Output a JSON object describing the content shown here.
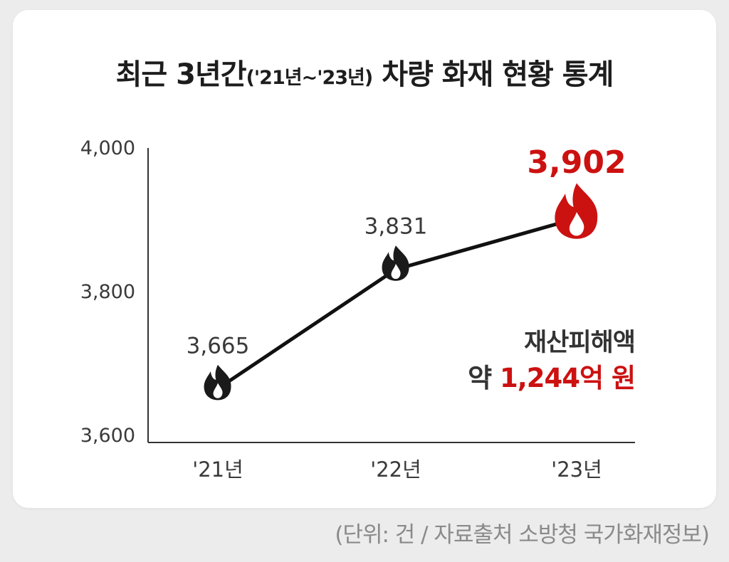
{
  "chart_data": {
    "type": "line",
    "title": "최근 3년간",
    "title_period": "('21년~'23년)",
    "title_tail": "차량 화재 현황 통계",
    "categories": [
      "'21년",
      "'22년",
      "'23년"
    ],
    "values": [
      3665,
      3831,
      3902
    ],
    "value_labels": [
      "3,665",
      "3,831",
      "3,902"
    ],
    "highlight_index": 2,
    "ylim": [
      3600,
      4000
    ],
    "yticks": [
      3600,
      3800,
      4000
    ],
    "ytick_labels": [
      "3,600",
      "3,800",
      "4,000"
    ],
    "grid": false,
    "line_color": "#111111",
    "highlight_color": "#cc1111",
    "marker_icon": "flame-icon"
  },
  "note": {
    "line1": "재산피해액",
    "prefix": "약",
    "amount": "1,244억 원"
  },
  "footer": "(단위: 건  / 자료출처  소방청 국가화재정보)"
}
